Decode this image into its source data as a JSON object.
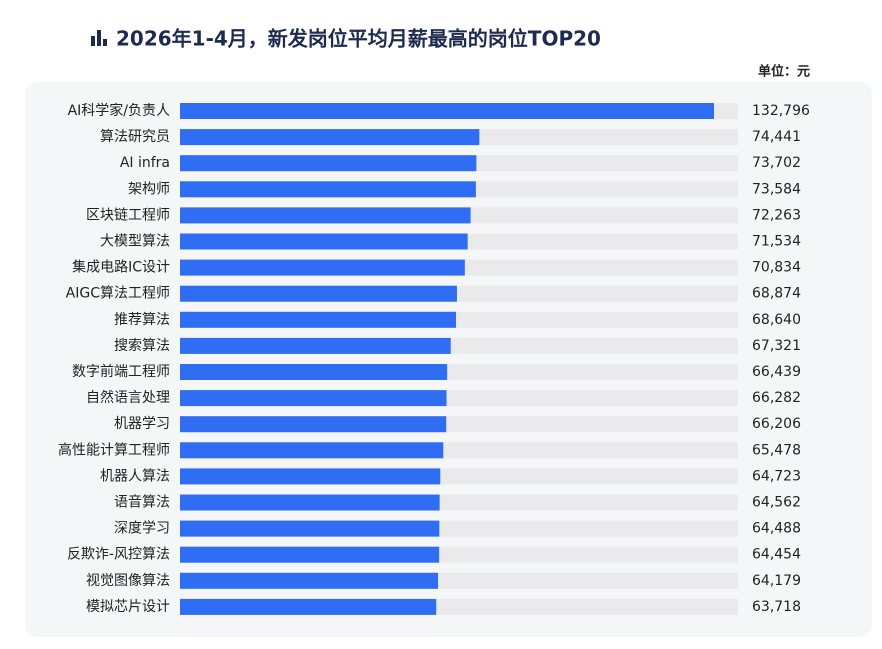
{
  "chart_data": {
    "type": "hbar",
    "title": "2026年1-4月，新发岗位平均月薪最高的岗位TOP20",
    "unit_label": "单位：元",
    "color": "#2f6df2",
    "categories": [
      "AI科学家/负责人",
      "算法研究员",
      "AI infra",
      "架构师",
      "区块链工程师",
      "大模型算法",
      "集成电路IC设计",
      "AIGC算法工程师",
      "推荐算法",
      "搜索算法",
      "数字前端工程师",
      "自然语言处理",
      "机器学习",
      "高性能计算工程师",
      "机器人算法",
      "语音算法",
      "深度学习",
      "反欺诈-风控算法",
      "视觉图像算法",
      "模拟芯片设计"
    ],
    "values": [
      132796,
      74441,
      73702,
      73584,
      72263,
      71534,
      70834,
      68874,
      68640,
      67321,
      66439,
      66282,
      66206,
      65478,
      64723,
      64562,
      64488,
      64454,
      64179,
      63718
    ],
    "value_labels": [
      "132,796",
      "74,441",
      "73,702",
      "73,584",
      "72,263",
      "71,534",
      "70,834",
      "68,874",
      "68,640",
      "67,321",
      "66,439",
      "66,282",
      "66,206",
      "65,478",
      "64,723",
      "64,562",
      "64,488",
      "64,454",
      "64,179",
      "63,718"
    ]
  }
}
